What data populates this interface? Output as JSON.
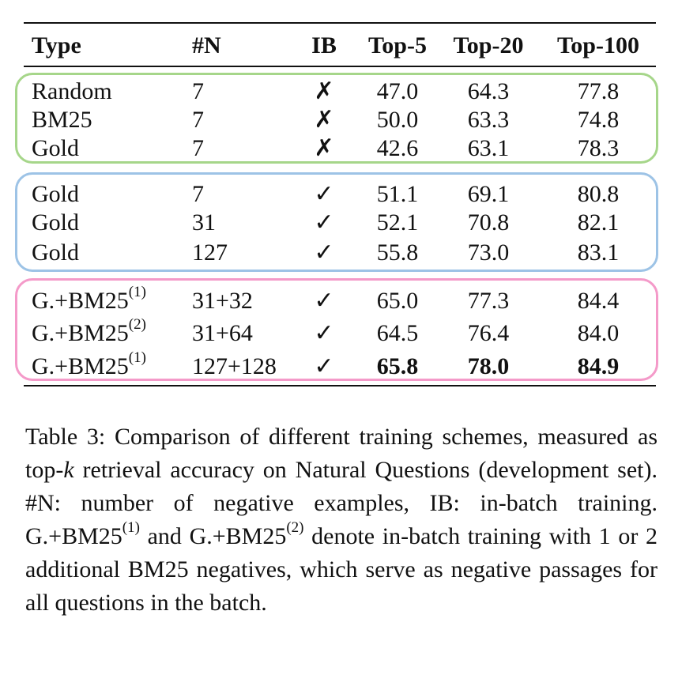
{
  "table": {
    "headers": {
      "type": "Type",
      "n": "#N",
      "ib": "IB",
      "top5": "Top-5",
      "top20": "Top-20",
      "top100": "Top-100"
    },
    "groups": [
      {
        "color": "#a6d68a",
        "rows": [
          {
            "type": "Random",
            "type_sup": "",
            "n": "7",
            "ib": "✗",
            "top5": "47.0",
            "top20": "64.3",
            "top100": "77.8"
          },
          {
            "type": "BM25",
            "type_sup": "",
            "n": "7",
            "ib": "✗",
            "top5": "50.0",
            "top20": "63.3",
            "top100": "74.8"
          },
          {
            "type": "Gold",
            "type_sup": "",
            "n": "7",
            "ib": "✗",
            "top5": "42.6",
            "top20": "63.1",
            "top100": "78.3"
          }
        ]
      },
      {
        "color": "#9dc3e6",
        "rows": [
          {
            "type": "Gold",
            "type_sup": "",
            "n": "7",
            "ib": "✓",
            "top5": "51.1",
            "top20": "69.1",
            "top100": "80.8"
          },
          {
            "type": "Gold",
            "type_sup": "",
            "n": "31",
            "ib": "✓",
            "top5": "52.1",
            "top20": "70.8",
            "top100": "82.1"
          },
          {
            "type": "Gold",
            "type_sup": "",
            "n": "127",
            "ib": "✓",
            "top5": "55.8",
            "top20": "73.0",
            "top100": "83.1"
          }
        ]
      },
      {
        "color": "#f49ac9",
        "rows": [
          {
            "type": "G.+BM25",
            "type_sup": "(1)",
            "n": "31+32",
            "ib": "✓",
            "top5": "65.0",
            "top20": "77.3",
            "top100": "84.4"
          },
          {
            "type": "G.+BM25",
            "type_sup": "(2)",
            "n": "31+64",
            "ib": "✓",
            "top5": "64.5",
            "top20": "76.4",
            "top100": "84.0"
          },
          {
            "type": "G.+BM25",
            "type_sup": "(1)",
            "n": "127+128",
            "ib": "✓",
            "top5": "65.8",
            "top20": "78.0",
            "top100": "84.9",
            "bold_scores": true
          }
        ]
      }
    ]
  },
  "caption": {
    "part1": "Table 3:  Comparison of different training schemes, measured as top-",
    "k": "k",
    "part2": " retrieval accuracy on Natural Questions (development set).   #N: number of negative examples, IB: in-batch training.   G.+BM25",
    "sup1": "(1)",
    "part3": " and G.+BM25",
    "sup2": "(2)",
    "part4": " denote in-batch training with 1 or 2 additional BM25 negatives, which serve as negative passages for all questions in the batch."
  }
}
